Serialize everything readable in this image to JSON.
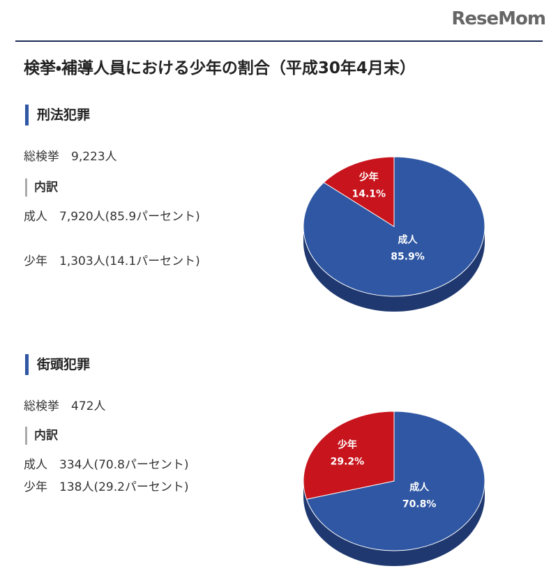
{
  "header": {
    "logo": "ReseMom",
    "title": "検挙・補導人員における少年の割合（平成30年4月末）"
  },
  "sections": [
    {
      "heading": "刑法犯罪",
      "total": "総検挙　9,223人",
      "breakdown_heading": "内訳",
      "lines": [
        "成人　7,920人(85.9パーセント)",
        "少年　1,303人(14.1パーセント)"
      ],
      "chart_data": {
        "type": "pie",
        "categories": [
          "成人",
          "少年"
        ],
        "values": [
          85.9,
          14.1
        ],
        "value_labels": [
          "85.9%",
          "14.1%"
        ],
        "colors": [
          "#2f57a3",
          "#c8141c"
        ]
      }
    },
    {
      "heading": "街頭犯罪",
      "total": "総検挙　472人",
      "breakdown_heading": "内訳",
      "lines": [
        "成人　334人(70.8パーセント)",
        "少年　138人(29.2パーセント)"
      ],
      "chart_data": {
        "type": "pie",
        "categories": [
          "成人",
          "少年"
        ],
        "values": [
          70.8,
          29.2
        ],
        "value_labels": [
          "70.8%",
          "29.2%"
        ],
        "colors": [
          "#2f57a3",
          "#c8141c"
        ]
      }
    }
  ]
}
